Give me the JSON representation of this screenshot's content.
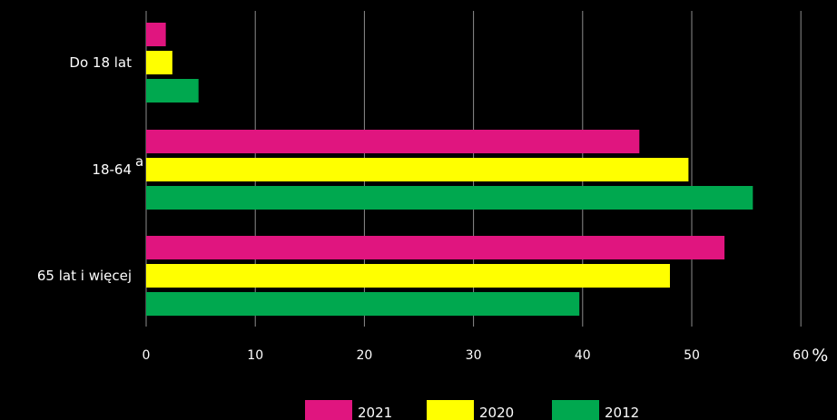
{
  "chart_data": {
    "type": "bar",
    "orientation": "horizontal",
    "categories": [
      "Do 18 lat",
      "18-64",
      "65 lat i więcej"
    ],
    "category_superscripts": [
      "",
      "a",
      ""
    ],
    "series": [
      {
        "name": "2021",
        "color": "#e0157f",
        "values": [
          1.8,
          45.2,
          53.0
        ]
      },
      {
        "name": "2020",
        "color": "#ffff00",
        "values": [
          2.4,
          49.7,
          48.0
        ]
      },
      {
        "name": "2012",
        "color": "#00a84f",
        "values": [
          4.8,
          55.6,
          39.7
        ]
      }
    ],
    "xlim": [
      0,
      60
    ],
    "ticks": [
      "0",
      "10",
      "20",
      "30",
      "40",
      "50",
      "60"
    ],
    "tick_values": [
      0,
      10,
      20,
      30,
      40,
      50,
      60
    ],
    "unit": "%",
    "grid": true,
    "legend_position": "bottom"
  }
}
